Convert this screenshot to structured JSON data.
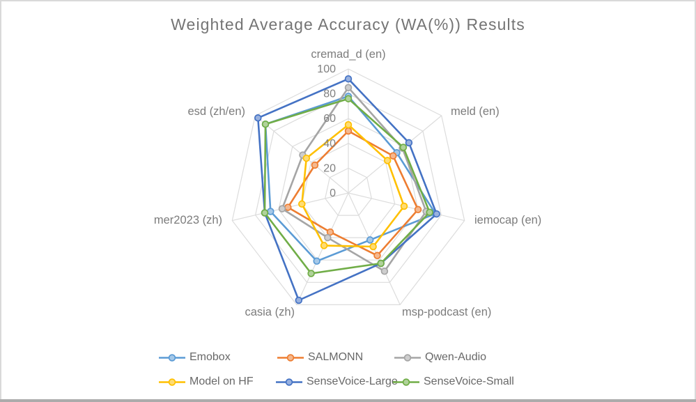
{
  "window": {
    "frame_border_color": "#D9D9D9",
    "bottom_bar_color": "#ABABAB",
    "background": "#FFFFFF"
  },
  "chart_data": {
    "type": "radar",
    "title": "Weighted Average Accuracy (WA(%)) Results",
    "categories": [
      "cremad_d (en)",
      "meld (en)",
      "iemocap (en)",
      "msp-podcast (en)",
      "casia (zh)",
      "mer2023 (zh)",
      "esd (zh/en)"
    ],
    "axis_range": [
      0,
      100
    ],
    "axis_ticks": [
      0,
      20,
      40,
      60,
      80,
      100
    ],
    "grid": true,
    "grid_color": "#DCDCDC",
    "tick_label_color": "#808080",
    "category_label_color": "#7C7C7C",
    "legend_position": "bottom",
    "series": [
      {
        "name": "Emobox",
        "color": "#5B9BD5",
        "values": [
          78,
          52,
          75,
          42,
          61,
          67,
          89
        ]
      },
      {
        "name": "SALMONN",
        "color": "#ED7D31",
        "values": [
          50,
          48,
          60,
          56,
          35,
          52,
          36
        ]
      },
      {
        "name": "Qwen-Audio",
        "color": "#A5A5A5",
        "values": [
          85,
          58,
          67,
          70,
          40,
          57,
          49
        ]
      },
      {
        "name": "Model on HF",
        "color": "#FFC000",
        "values": [
          55,
          42,
          48,
          48,
          47,
          40,
          45
        ]
      },
      {
        "name": "SenseVoice-Large",
        "color": "#4472C4",
        "values": [
          92,
          65,
          76,
          63,
          96,
          72,
          97
        ]
      },
      {
        "name": "SenseVoice-Small",
        "color": "#70AD47",
        "values": [
          76,
          59,
          70,
          63,
          72,
          72,
          89
        ]
      }
    ]
  }
}
